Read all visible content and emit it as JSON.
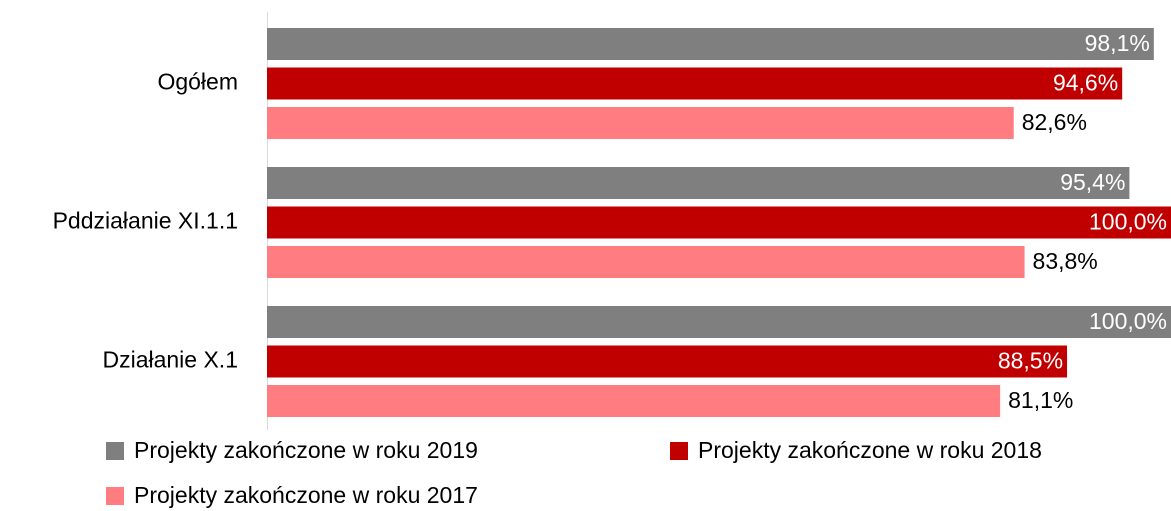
{
  "chart_data": {
    "type": "hbar",
    "categories": [
      "Ogółem",
      "Pddziałanie XI.1.1",
      "Działanie X.1"
    ],
    "xlim": [
      0,
      100
    ],
    "series": [
      {
        "name": "Projekty zakończone w roku 2019",
        "color": "#7f7f7f",
        "label_inside": true,
        "values": [
          98.1,
          95.4,
          100.0
        ],
        "value_labels": [
          "98,1%",
          "95,4%",
          "100,0%"
        ]
      },
      {
        "name": "Projekty zakończone w roku 2018",
        "color": "#c00000",
        "label_inside": true,
        "values": [
          94.6,
          100.0,
          88.5
        ],
        "value_labels": [
          "94,6%",
          "100,0%",
          "88,5%"
        ]
      },
      {
        "name": "Projekty zakończone w roku 2017",
        "color": "#ff7c80",
        "label_inside": false,
        "values": [
          82.6,
          83.8,
          81.1
        ],
        "value_labels": [
          "82,6%",
          "83,8%",
          "81,1%"
        ]
      }
    ]
  }
}
